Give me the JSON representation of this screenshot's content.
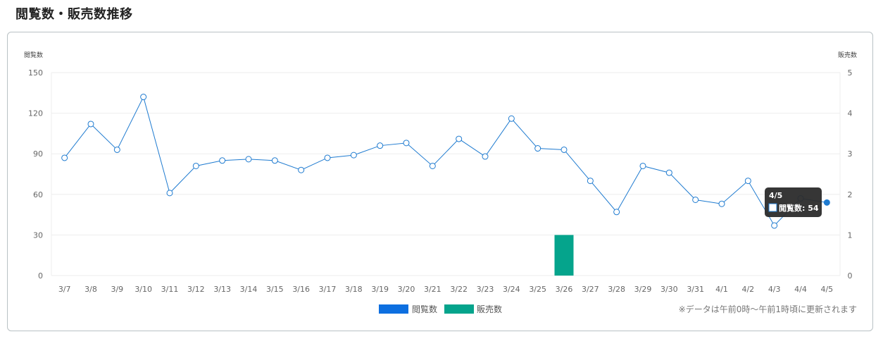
{
  "page": {
    "title": "閲覧数・販売数推移",
    "note": "※データは午前0時〜午前1時頃に更新されます"
  },
  "colors": {
    "views": "#1f7bd0",
    "views_legend": "#0d6fe0",
    "sales": "#05a48c",
    "grid": "#eeeeee",
    "tooltip_bg": "#2b2b2b"
  },
  "tooltip": {
    "title": "4/5",
    "label": "閲覧数: 54"
  },
  "chart_data": {
    "type": "line",
    "categories": [
      "3/7",
      "3/8",
      "3/9",
      "3/10",
      "3/11",
      "3/12",
      "3/13",
      "3/14",
      "3/15",
      "3/16",
      "3/17",
      "3/18",
      "3/19",
      "3/20",
      "3/21",
      "3/22",
      "3/23",
      "3/24",
      "3/25",
      "3/26",
      "3/27",
      "3/28",
      "3/29",
      "3/30",
      "3/31",
      "4/1",
      "4/2",
      "4/3",
      "4/4",
      "4/5"
    ],
    "series": [
      {
        "name": "閲覧数",
        "type": "line",
        "axis": "left",
        "values": [
          87,
          112,
          93,
          132,
          61,
          81,
          85,
          86,
          85,
          78,
          87,
          89,
          96,
          98,
          81,
          101,
          88,
          116,
          94,
          93,
          70,
          47,
          81,
          76,
          56,
          53,
          70,
          37,
          57,
          54
        ]
      },
      {
        "name": "販売数",
        "type": "bar",
        "axis": "right",
        "values": [
          0,
          0,
          0,
          0,
          0,
          0,
          0,
          0,
          0,
          0,
          0,
          0,
          0,
          0,
          0,
          0,
          0,
          0,
          0,
          1,
          0,
          0,
          0,
          0,
          0,
          0,
          0,
          0,
          0,
          0
        ]
      }
    ],
    "y_left": {
      "label": "閲覧数",
      "ticks": [
        0,
        30,
        60,
        90,
        120,
        150
      ],
      "range": [
        0,
        150
      ]
    },
    "y_right": {
      "label": "販売数",
      "ticks": [
        0,
        1,
        2,
        3,
        4,
        5
      ],
      "range": [
        0,
        5
      ]
    },
    "legend": {
      "position": "bottom-center",
      "items": [
        "閲覧数",
        "販売数"
      ]
    },
    "grid": true
  }
}
